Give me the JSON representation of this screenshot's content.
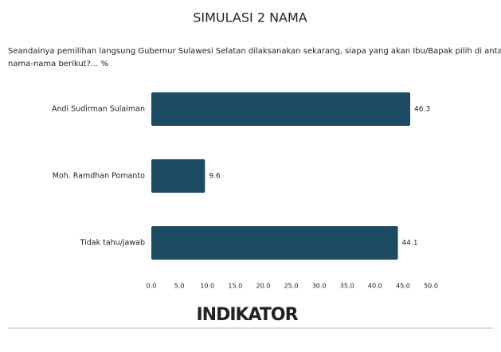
{
  "chart_data": {
    "type": "bar",
    "orientation": "horizontal",
    "title": "SIMULASI 2 NAMA",
    "subtitle": [
      "Seandainya pemilihan langsung Gubernur Sulawesi Selatan dilaksanakan sekarang, siapa yang akan Ibu/Bapak pilih di antara",
      "nama-nama berikut?... %"
    ],
    "categories": [
      "Andi Sudirman Sulaiman",
      "Moh. Ramdhan Pomanto",
      "Tidak tahu/jawab"
    ],
    "values": [
      46.3,
      9.6,
      44.1
    ],
    "color": "#1c4a62",
    "xlim": [
      0,
      50
    ],
    "xticks": [
      {
        "value": 0,
        "label": "0.0"
      },
      {
        "value": 5,
        "label": "5.0"
      },
      {
        "value": 10,
        "label": "10.0"
      },
      {
        "value": 15,
        "label": "15.0"
      },
      {
        "value": 20,
        "label": "20.0"
      },
      {
        "value": 25,
        "label": "25.0"
      },
      {
        "value": 30,
        "label": "30.0"
      },
      {
        "value": 35,
        "label": "35.0"
      },
      {
        "value": 40,
        "label": "40.0"
      },
      {
        "value": 45,
        "label": "45.0"
      },
      {
        "value": 50,
        "label": "50.0"
      }
    ],
    "logo": "INDIKATOR"
  }
}
